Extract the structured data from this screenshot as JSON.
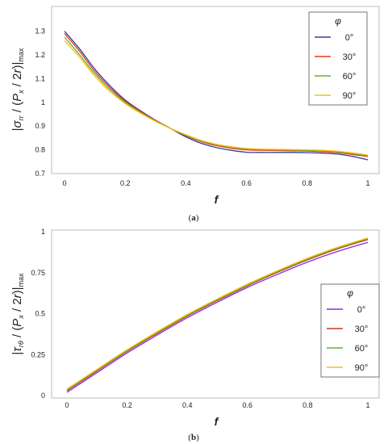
{
  "colors": {
    "phi0": "#3a3a9a",
    "phi30": "#e8391f",
    "phi60": "#66b032",
    "phi90": "#f2c40c",
    "phi0_b": "#8a2be2",
    "phi30_b": "#c0392b"
  },
  "chart_data": [
    {
      "type": "line",
      "caption_bold": "a",
      "xlabel": "f",
      "ylabel": "|σrr/(Px/2r)|max",
      "xlim": [
        0,
        1
      ],
      "ylim": [
        0.7,
        1.35
      ],
      "xticks": [
        "0",
        "0.2",
        "0.4",
        "0.6",
        "0.8",
        "1"
      ],
      "yticks": [
        "0.7",
        "0.8",
        "0.9",
        "1",
        "1.1",
        "1.2",
        "1.3"
      ],
      "legend_title": "φ",
      "legend_position": "top-right",
      "series": [
        {
          "name": "0°",
          "x": [
            0,
            0.05,
            0.1,
            0.15,
            0.2,
            0.25,
            0.3,
            0.35,
            0.4,
            0.45,
            0.5,
            0.55,
            0.6,
            0.65,
            0.7,
            0.75,
            0.8,
            0.85,
            0.9,
            0.95,
            1.0
          ],
          "y": [
            1.3,
            1.225,
            1.14,
            1.07,
            1.01,
            0.965,
            0.925,
            0.89,
            0.855,
            0.828,
            0.81,
            0.798,
            0.79,
            0.789,
            0.789,
            0.789,
            0.788,
            0.786,
            0.782,
            0.772,
            0.758
          ]
        },
        {
          "name": "30°",
          "x": [
            0,
            0.05,
            0.1,
            0.15,
            0.2,
            0.25,
            0.3,
            0.35,
            0.4,
            0.45,
            0.5,
            0.55,
            0.6,
            0.65,
            0.7,
            0.75,
            0.8,
            0.85,
            0.9,
            0.95,
            1.0
          ],
          "y": [
            1.29,
            1.215,
            1.13,
            1.062,
            1.005,
            0.962,
            0.924,
            0.89,
            0.86,
            0.835,
            0.818,
            0.807,
            0.8,
            0.798,
            0.797,
            0.796,
            0.795,
            0.792,
            0.788,
            0.78,
            0.772
          ]
        },
        {
          "name": "60°",
          "x": [
            0,
            0.05,
            0.1,
            0.15,
            0.2,
            0.25,
            0.3,
            0.35,
            0.4,
            0.45,
            0.5,
            0.55,
            0.6,
            0.65,
            0.7,
            0.75,
            0.8,
            0.85,
            0.9,
            0.95,
            1.0
          ],
          "y": [
            1.275,
            1.2,
            1.12,
            1.054,
            1.0,
            0.958,
            0.922,
            0.89,
            0.862,
            0.838,
            0.822,
            0.811,
            0.804,
            0.801,
            0.8,
            0.799,
            0.798,
            0.796,
            0.792,
            0.784,
            0.775
          ]
        },
        {
          "name": "90°",
          "x": [
            0,
            0.05,
            0.1,
            0.15,
            0.2,
            0.25,
            0.3,
            0.35,
            0.4,
            0.45,
            0.5,
            0.55,
            0.6,
            0.65,
            0.7,
            0.75,
            0.8,
            0.85,
            0.9,
            0.95,
            1.0
          ],
          "y": [
            1.26,
            1.19,
            1.11,
            1.046,
            0.995,
            0.955,
            0.92,
            0.89,
            0.864,
            0.84,
            0.824,
            0.813,
            0.806,
            0.803,
            0.802,
            0.801,
            0.8,
            0.798,
            0.794,
            0.787,
            0.778
          ]
        }
      ]
    },
    {
      "type": "line",
      "caption_bold": "b",
      "xlabel": "f",
      "ylabel": "|τrθ/(Px/2r)|max",
      "xlim": [
        0,
        1
      ],
      "ylim": [
        0,
        1
      ],
      "xticks": [
        "0",
        "0.2",
        "0.4",
        "0.6",
        "0.8",
        "1"
      ],
      "yticks": [
        "0",
        "0.25",
        "0.5",
        "0.75",
        "1"
      ],
      "legend_title": "φ",
      "legend_position": "center-right",
      "series": [
        {
          "name": "0°",
          "x": [
            0,
            0.1,
            0.2,
            0.3,
            0.4,
            0.5,
            0.6,
            0.7,
            0.8,
            0.9,
            1.0
          ],
          "y": [
            0.02,
            0.14,
            0.26,
            0.37,
            0.475,
            0.57,
            0.66,
            0.74,
            0.815,
            0.88,
            0.935
          ]
        },
        {
          "name": "30°",
          "x": [
            0,
            0.1,
            0.2,
            0.3,
            0.4,
            0.5,
            0.6,
            0.7,
            0.8,
            0.9,
            1.0
          ],
          "y": [
            0.03,
            0.15,
            0.27,
            0.38,
            0.485,
            0.58,
            0.67,
            0.752,
            0.828,
            0.895,
            0.952
          ]
        },
        {
          "name": "60°",
          "x": [
            0,
            0.1,
            0.2,
            0.3,
            0.4,
            0.5,
            0.6,
            0.7,
            0.8,
            0.9,
            1.0
          ],
          "y": [
            0.035,
            0.155,
            0.275,
            0.385,
            0.49,
            0.585,
            0.675,
            0.757,
            0.833,
            0.9,
            0.958
          ]
        },
        {
          "name": "90°",
          "x": [
            0,
            0.1,
            0.2,
            0.3,
            0.4,
            0.5,
            0.6,
            0.7,
            0.8,
            0.9,
            1.0
          ],
          "y": [
            0.04,
            0.16,
            0.28,
            0.39,
            0.495,
            0.59,
            0.68,
            0.762,
            0.838,
            0.905,
            0.962
          ]
        }
      ]
    }
  ]
}
